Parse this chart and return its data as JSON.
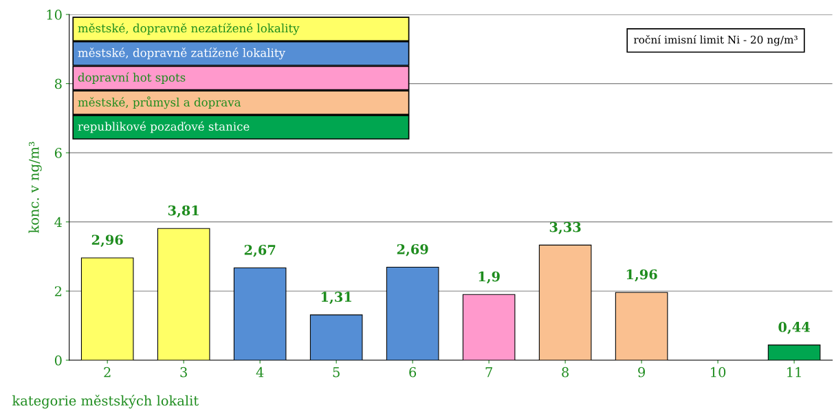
{
  "chart_data": {
    "type": "bar",
    "stacked": true,
    "categories": [
      "2",
      "3",
      "4",
      "5",
      "6",
      "7",
      "8",
      "9",
      "10",
      "11"
    ],
    "series": [
      {
        "name": "městské, dopravně nezatížené lokality",
        "color": "#ffff66",
        "values": [
          2.96,
          3.81,
          null,
          null,
          null,
          null,
          null,
          null,
          null,
          null
        ],
        "value_labels": [
          "2,96",
          "3,81",
          null,
          null,
          null,
          null,
          null,
          null,
          null,
          null
        ]
      },
      {
        "name": "městské, dopravně zatížené lokality",
        "color": "#558ed5",
        "values": [
          null,
          null,
          2.67,
          1.31,
          2.69,
          null,
          null,
          null,
          null,
          null
        ],
        "value_labels": [
          null,
          null,
          "2,67",
          "1,31",
          "2,69",
          null,
          null,
          null,
          null,
          null
        ]
      },
      {
        "name": "dopravní hot spots",
        "color": "#ff99cc",
        "values": [
          null,
          null,
          null,
          null,
          null,
          1.9,
          null,
          null,
          null,
          null
        ],
        "value_labels": [
          null,
          null,
          null,
          null,
          null,
          "1,9",
          null,
          null,
          null,
          null
        ]
      },
      {
        "name": "městské, průmysl a doprava",
        "color": "#fac090",
        "values": [
          null,
          null,
          null,
          null,
          null,
          null,
          3.33,
          1.96,
          null,
          null
        ],
        "value_labels": [
          null,
          null,
          null,
          null,
          null,
          null,
          "3,33",
          "1,96",
          null,
          null
        ]
      },
      {
        "name": "republikové pozaďové stanice",
        "color": "#00a650",
        "values": [
          null,
          null,
          null,
          null,
          null,
          null,
          null,
          null,
          null,
          0.44
        ],
        "value_labels": [
          null,
          null,
          null,
          null,
          null,
          null,
          null,
          null,
          null,
          "0,44"
        ]
      }
    ],
    "ylim": [
      0,
      10
    ],
    "yticks": [
      0,
      2,
      4,
      6,
      8,
      10
    ],
    "grid": "y",
    "legend": "top left",
    "ylabel": "konc. v ng/m³",
    "xlabel": "kategorie městských lokalit",
    "annotations": [
      "roční imisní limit Ni - 20 ng/m³"
    ]
  }
}
